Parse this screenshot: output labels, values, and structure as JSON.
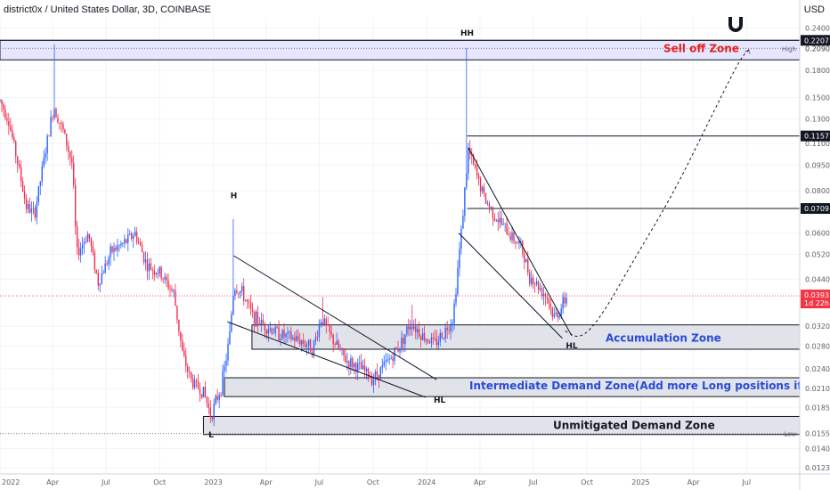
{
  "header": {
    "title": "district0x / United States Dollar, 3D, COINBASE"
  },
  "currency_label": "USD",
  "colors": {
    "up": "#2962ff",
    "down": "#ef2f4f",
    "zone_fill": "#e1e3ea",
    "zone_stroke": "#131722",
    "selloff_fill": "#e6e6ff",
    "selloff_text": "#e8211c",
    "accum_text": "#2a4bd7",
    "current_price": "#f23645",
    "level_tag": "#131722"
  },
  "chart_data": {
    "type": "candlestick",
    "yscale": "log",
    "ylim": [
      0.0118,
      0.257
    ],
    "x_range": [
      "2022-01-01",
      "2025-09-30"
    ],
    "x_ticks": [
      "2022",
      "Apr",
      "Jul",
      "Oct",
      "2023",
      "Apr",
      "Jul",
      "Oct",
      "2024",
      "Apr",
      "Jul",
      "Oct",
      "2025",
      "Apr",
      "Jul"
    ],
    "x_tick_dates": [
      "2022-01-01",
      "2022-04-01",
      "2022-07-01",
      "2022-10-01",
      "2023-01-01",
      "2023-04-01",
      "2023-07-01",
      "2023-10-01",
      "2024-01-01",
      "2024-04-01",
      "2024-07-01",
      "2024-10-01",
      "2025-01-01",
      "2025-04-01",
      "2025-07-01"
    ],
    "y_ticks": [
      "0.2400",
      "0.2090",
      "0.1800",
      "0.1500",
      "0.1300",
      "0.1100",
      "0.0950",
      "0.0800",
      "0.0600",
      "0.0520",
      "0.0440",
      "0.0320",
      "0.0280",
      "0.0240",
      "0.0210",
      "0.0185",
      "0.0140",
      "0.0123"
    ],
    "y_tick_values": [
      0.24,
      0.209,
      0.18,
      0.15,
      0.13,
      0.11,
      0.095,
      0.08,
      0.06,
      0.052,
      0.044,
      0.032,
      0.028,
      0.024,
      0.021,
      0.0185,
      0.014,
      0.0123
    ],
    "price_path": [
      [
        "2022-01-01",
        0.147
      ],
      [
        "2022-01-15",
        0.13
      ],
      [
        "2022-02-01",
        0.095
      ],
      [
        "2022-02-15",
        0.072
      ],
      [
        "2022-03-01",
        0.068
      ],
      [
        "2022-03-20",
        0.105
      ],
      [
        "2022-04-03",
        0.142
      ],
      [
        "2022-04-20",
        0.118
      ],
      [
        "2022-05-05",
        0.095
      ],
      [
        "2022-05-12",
        0.052
      ],
      [
        "2022-06-01",
        0.06
      ],
      [
        "2022-06-18",
        0.043
      ],
      [
        "2022-07-10",
        0.053
      ],
      [
        "2022-08-01",
        0.056
      ],
      [
        "2022-08-20",
        0.06
      ],
      [
        "2022-09-10",
        0.048
      ],
      [
        "2022-10-01",
        0.046
      ],
      [
        "2022-10-25",
        0.04
      ],
      [
        "2022-11-10",
        0.026
      ],
      [
        "2022-11-25",
        0.022
      ],
      [
        "2022-12-15",
        0.0205
      ],
      [
        "2022-12-28",
        0.0175
      ],
      [
        "2023-01-15",
        0.0215
      ],
      [
        "2023-01-28",
        0.029
      ],
      [
        "2023-02-05",
        0.042
      ],
      [
        "2023-02-20",
        0.04
      ],
      [
        "2023-03-10",
        0.034
      ],
      [
        "2023-04-01",
        0.032
      ],
      [
        "2023-05-01",
        0.03
      ],
      [
        "2023-06-01",
        0.029
      ],
      [
        "2023-06-20",
        0.0275
      ],
      [
        "2023-07-05",
        0.034
      ],
      [
        "2023-07-20",
        0.03
      ],
      [
        "2023-08-15",
        0.0255
      ],
      [
        "2023-09-10",
        0.024
      ],
      [
        "2023-10-01",
        0.0225
      ],
      [
        "2023-10-25",
        0.025
      ],
      [
        "2023-11-15",
        0.028
      ],
      [
        "2023-12-05",
        0.033
      ],
      [
        "2023-12-25",
        0.03
      ],
      [
        "2024-01-15",
        0.0285
      ],
      [
        "2024-02-01",
        0.031
      ],
      [
        "2024-02-15",
        0.034
      ],
      [
        "2024-02-28",
        0.058
      ],
      [
        "2024-03-12",
        0.105
      ],
      [
        "2024-03-25",
        0.09
      ],
      [
        "2024-04-10",
        0.075
      ],
      [
        "2024-05-01",
        0.066
      ],
      [
        "2024-05-20",
        0.06
      ],
      [
        "2024-06-10",
        0.055
      ],
      [
        "2024-06-25",
        0.045
      ],
      [
        "2024-07-10",
        0.042
      ],
      [
        "2024-07-25",
        0.039
      ],
      [
        "2024-08-05",
        0.034
      ],
      [
        "2024-08-15",
        0.0355
      ],
      [
        "2024-08-28",
        0.0393
      ]
    ],
    "wick_highs": [
      [
        "2022-04-03",
        0.215
      ],
      [
        "2023-02-05",
        0.066
      ],
      [
        "2024-03-10",
        0.21
      ],
      [
        "2023-07-08",
        0.039
      ],
      [
        "2023-12-08",
        0.037
      ]
    ],
    "current_price": 0.0393,
    "current_countdown": "1d 22h",
    "horizontal_levels": [
      {
        "value": 0.2207,
        "label": "0.2207",
        "style": "solid"
      },
      {
        "value": 0.1157,
        "label": "0.1157",
        "style": "solid",
        "start": "2024-03-10"
      },
      {
        "value": 0.0709,
        "label": "0.0709",
        "style": "solid",
        "start": "2024-03-10"
      },
      {
        "value": 0.209,
        "label": "High",
        "style": "dotted"
      },
      {
        "value": 0.0155,
        "label": "Low",
        "style": "dotted"
      }
    ],
    "zones": [
      {
        "name": "Sell off Zone",
        "top": 0.2207,
        "bottom": 0.1935,
        "start": "2022-01-01",
        "end": "2025-09-30",
        "style": "selloff"
      },
      {
        "name": "Accumulation Zone",
        "top": 0.0323,
        "bottom": 0.0274,
        "start": "2023-03-08",
        "end": "2025-09-30",
        "style": "accum"
      },
      {
        "name": "Intermediate Demand Zone(Add more Long positions if tested)",
        "top": 0.0226,
        "bottom": 0.0199,
        "start": "2023-01-20",
        "end": "2025-09-30",
        "style": "intermediate"
      },
      {
        "name": "Unmitigated Demand Zone",
        "top": 0.0174,
        "bottom": 0.0154,
        "start": "2022-12-15",
        "end": "2025-09-30",
        "style": "unmitigated"
      }
    ],
    "trendlines": [
      {
        "from": [
          "2023-02-05",
          0.0515
        ],
        "to": [
          "2024-01-18",
          0.0223
        ]
      },
      {
        "from": [
          "2023-01-25",
          0.033
        ],
        "to": [
          "2023-12-30",
          0.0198
        ]
      },
      {
        "from": [
          "2024-03-12",
          0.107
        ],
        "to": [
          "2024-09-05",
          0.03
        ]
      },
      {
        "from": [
          "2024-02-25",
          0.06
        ],
        "to": [
          "2024-08-20",
          0.0295
        ]
      }
    ],
    "projection": [
      [
        "2024-08-25",
        0.031
      ],
      [
        "2024-09-20",
        0.0293
      ],
      [
        "2024-10-25",
        0.034
      ],
      [
        "2024-12-20",
        0.05
      ],
      [
        "2025-02-25",
        0.078
      ],
      [
        "2025-04-25",
        0.125
      ],
      [
        "2025-06-20",
        0.195
      ],
      [
        "2025-07-05",
        0.207
      ]
    ],
    "annotations": [
      {
        "text": "H",
        "date": "2023-02-05",
        "value": 0.076
      },
      {
        "text": "L",
        "date": "2022-12-28",
        "value": 0.0151
      },
      {
        "text": "HH",
        "date": "2024-03-10",
        "value": 0.228
      },
      {
        "text": "HL",
        "date": "2024-01-23",
        "value": 0.0191
      },
      {
        "text": "HL",
        "date": "2024-09-05",
        "value": 0.0276
      }
    ]
  },
  "icons": {
    "magnet": "magnet-icon"
  }
}
